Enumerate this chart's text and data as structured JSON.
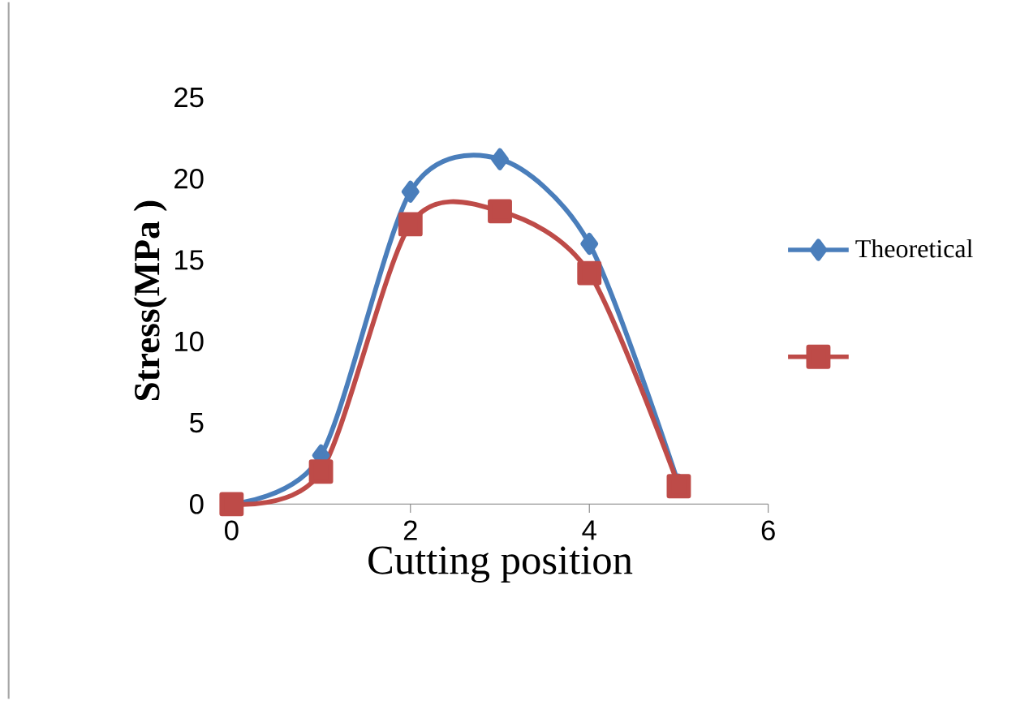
{
  "chart_data": {
    "type": "line",
    "xlabel": "Cutting position",
    "ylabel": "Stress(MPa )",
    "series": [
      {
        "name": "Theoretical",
        "color": "#4a7ebb",
        "marker": "diamond",
        "x": [
          0,
          1,
          2,
          3,
          4,
          5
        ],
        "values": [
          0,
          3,
          19.2,
          21.2,
          16,
          1.2
        ]
      },
      {
        "color": "#be4b48",
        "marker": "square",
        "x": [
          0,
          1,
          2,
          3,
          4,
          5
        ],
        "values": [
          0,
          2,
          17.2,
          18,
          14.2,
          1.1
        ]
      }
    ],
    "xlim": [
      0,
      6
    ],
    "xticks": [
      0,
      2,
      4,
      6
    ],
    "ylim": [
      0,
      25
    ],
    "yticks": [
      0,
      5,
      10,
      15,
      20,
      25
    ],
    "grid": false,
    "legend": "right",
    "line_style": "solid"
  }
}
